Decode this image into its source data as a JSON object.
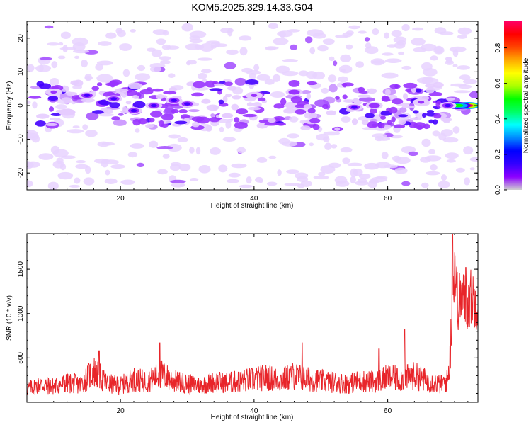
{
  "title": "KOM5.2025.329.14.33.G04",
  "colors": {
    "series_line": "#e8252a",
    "axis": "#000000",
    "background": "#ffffff"
  },
  "chart_data": [
    {
      "type": "heatmap",
      "name": "spectrogram",
      "xlabel": "Height of straight line (km)",
      "ylabel": "Frequency (Hz)",
      "xlim": [
        6,
        73.5
      ],
      "ylim": [
        -25,
        25
      ],
      "x_ticks": [
        20,
        40,
        60
      ],
      "y_ticks": [
        -20,
        -10,
        0,
        10,
        20
      ],
      "colorbar": {
        "label": "Normalized spectral amplitude",
        "range": [
          0,
          0.95
        ],
        "ticks": [
          0.0,
          0.2,
          0.4,
          0.6,
          0.8
        ],
        "colormap": [
          "#ffffff",
          "#e6ccff",
          "#9933ff",
          "#4400ff",
          "#0000ff",
          "#00aaff",
          "#00ffcc",
          "#00ff00",
          "#aaff00",
          "#ffff00",
          "#ff8800",
          "#ff0000",
          "#ff0066"
        ]
      },
      "blobs": [
        {
          "x": 72,
          "y": 0,
          "amp": 0.95
        },
        {
          "x": 70.5,
          "y": 0,
          "amp": 0.55
        },
        {
          "x": 69,
          "y": 0,
          "amp": 0.25
        },
        {
          "x": 15,
          "y": 3,
          "amp": 0.25
        },
        {
          "x": 19,
          "y": 2,
          "amp": 0.22
        },
        {
          "x": 22,
          "y": -1.5,
          "amp": 0.2
        },
        {
          "x": 25,
          "y": 0,
          "amp": 0.24
        },
        {
          "x": 28,
          "y": 1.5,
          "amp": 0.22
        },
        {
          "x": 30,
          "y": 0.5,
          "amp": 0.2
        },
        {
          "x": 40,
          "y": 3,
          "amp": 0.16
        },
        {
          "x": 46,
          "y": 4,
          "amp": 0.18
        },
        {
          "x": 55,
          "y": -0.5,
          "amp": 0.22
        },
        {
          "x": 58,
          "y": 0,
          "amp": 0.18
        },
        {
          "x": 65,
          "y": 1,
          "amp": 0.15
        },
        {
          "x": 10,
          "y": 4,
          "amp": 0.12
        },
        {
          "x": 12,
          "y": -2,
          "amp": 0.1
        },
        {
          "x": 36,
          "y": -3,
          "amp": 0.08
        }
      ]
    },
    {
      "type": "line",
      "name": "snr",
      "xlabel": "Height of straight line (km)",
      "ylabel": "SNR (10 * v/v)",
      "xlim": [
        6,
        73.5
      ],
      "ylim": [
        0,
        1900
      ],
      "x_ticks": [
        20,
        40,
        60
      ],
      "y_ticks": [
        500,
        1000,
        1500
      ],
      "series": [
        {
          "name": "SNR",
          "x": [
            6,
            8,
            10,
            12,
            14,
            16,
            18,
            20,
            22,
            24,
            26,
            28,
            30,
            32,
            34,
            36,
            38,
            40,
            42,
            44,
            46,
            48,
            50,
            52,
            54,
            56,
            58,
            60,
            62,
            64,
            66,
            68,
            69,
            69.5,
            70,
            70.5,
            71,
            71.5,
            72,
            72.5,
            73,
            73.5
          ],
          "values": [
            150,
            200,
            180,
            220,
            200,
            350,
            210,
            190,
            260,
            230,
            320,
            240,
            210,
            190,
            230,
            220,
            240,
            260,
            280,
            250,
            300,
            260,
            240,
            230,
            210,
            240,
            230,
            280,
            260,
            300,
            240,
            200,
            250,
            700,
            1600,
            1100,
            1200,
            1150,
            1100,
            1200,
            1150,
            1100
          ],
          "peaks": [
            {
              "x": 16.8,
              "y": 580
            },
            {
              "x": 25.9,
              "y": 670
            },
            {
              "x": 47.2,
              "y": 670
            },
            {
              "x": 58.7,
              "y": 600
            },
            {
              "x": 62.5,
              "y": 820
            },
            {
              "x": 69.7,
              "y": 1900
            },
            {
              "x": 71.7,
              "y": 1520
            }
          ]
        }
      ]
    }
  ]
}
